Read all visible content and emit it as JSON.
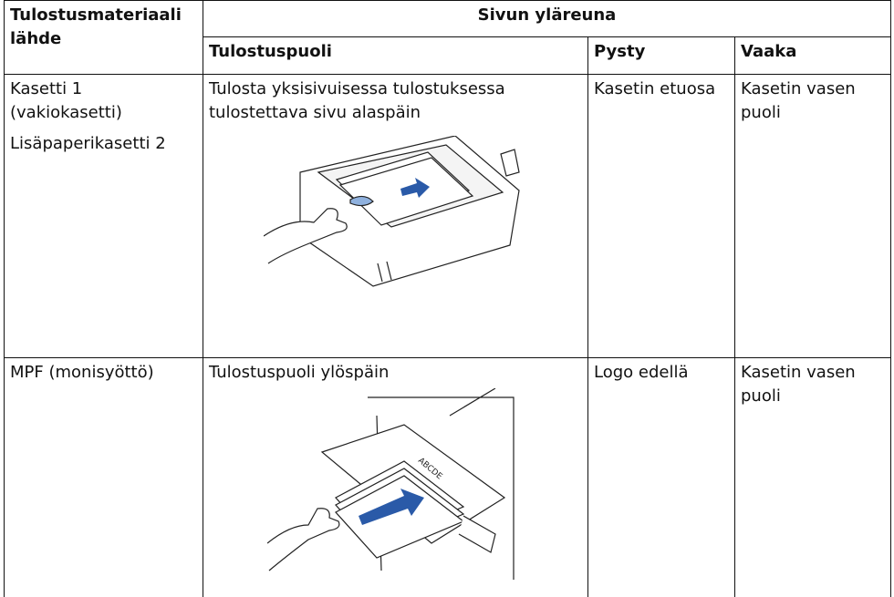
{
  "table": {
    "header": {
      "source": "Tulostusmateriaali lähde",
      "group": "Sivun yläreuna",
      "columns": [
        "Tulostuspuoli",
        "Pysty",
        "Vaaka"
      ]
    },
    "rows": [
      {
        "source": [
          "Kasetti 1 (vakiokasetti)",
          "Lisäpaperikasetti 2"
        ],
        "side": "Tulosta yksisivuisessa tulostuksessa tulostettava sivu alaspäin",
        "portrait": "Kasetin etuosa",
        "landscape": "Kasetin vasen puoli"
      },
      {
        "source": [
          "MPF (monisyöttö)"
        ],
        "side": "Tulostuspuoli ylöspäin",
        "portrait": "Logo edellä",
        "landscape": "Kasetin vasen puoli"
      }
    ]
  }
}
